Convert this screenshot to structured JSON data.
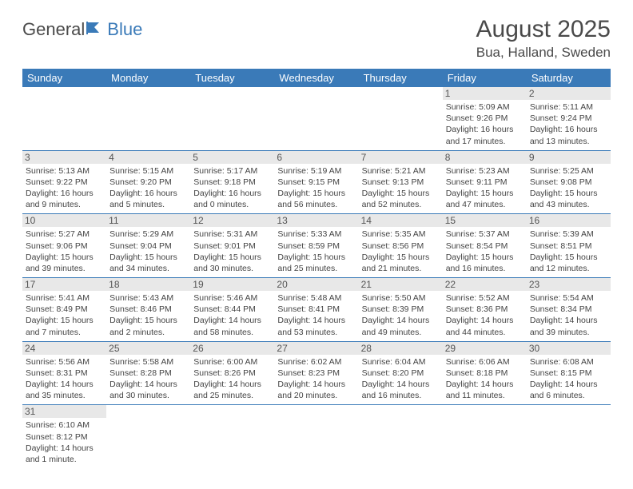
{
  "logo": {
    "text1": "General",
    "text2": "Blue"
  },
  "title": "August 2025",
  "location": "Bua, Halland, Sweden",
  "colors": {
    "header_bg": "#3a7ab8",
    "header_text": "#ffffff",
    "border": "#3a7ab8",
    "daynum_bg": "#e8e8e8",
    "text": "#4a4a4a"
  },
  "days": [
    "Sunday",
    "Monday",
    "Tuesday",
    "Wednesday",
    "Thursday",
    "Friday",
    "Saturday"
  ],
  "weeks": [
    [
      null,
      null,
      null,
      null,
      null,
      {
        "n": "1",
        "sunrise": "5:09 AM",
        "sunset": "9:26 PM",
        "daylight": "16 hours and 17 minutes."
      },
      {
        "n": "2",
        "sunrise": "5:11 AM",
        "sunset": "9:24 PM",
        "daylight": "16 hours and 13 minutes."
      }
    ],
    [
      {
        "n": "3",
        "sunrise": "5:13 AM",
        "sunset": "9:22 PM",
        "daylight": "16 hours and 9 minutes."
      },
      {
        "n": "4",
        "sunrise": "5:15 AM",
        "sunset": "9:20 PM",
        "daylight": "16 hours and 5 minutes."
      },
      {
        "n": "5",
        "sunrise": "5:17 AM",
        "sunset": "9:18 PM",
        "daylight": "16 hours and 0 minutes."
      },
      {
        "n": "6",
        "sunrise": "5:19 AM",
        "sunset": "9:15 PM",
        "daylight": "15 hours and 56 minutes."
      },
      {
        "n": "7",
        "sunrise": "5:21 AM",
        "sunset": "9:13 PM",
        "daylight": "15 hours and 52 minutes."
      },
      {
        "n": "8",
        "sunrise": "5:23 AM",
        "sunset": "9:11 PM",
        "daylight": "15 hours and 47 minutes."
      },
      {
        "n": "9",
        "sunrise": "5:25 AM",
        "sunset": "9:08 PM",
        "daylight": "15 hours and 43 minutes."
      }
    ],
    [
      {
        "n": "10",
        "sunrise": "5:27 AM",
        "sunset": "9:06 PM",
        "daylight": "15 hours and 39 minutes."
      },
      {
        "n": "11",
        "sunrise": "5:29 AM",
        "sunset": "9:04 PM",
        "daylight": "15 hours and 34 minutes."
      },
      {
        "n": "12",
        "sunrise": "5:31 AM",
        "sunset": "9:01 PM",
        "daylight": "15 hours and 30 minutes."
      },
      {
        "n": "13",
        "sunrise": "5:33 AM",
        "sunset": "8:59 PM",
        "daylight": "15 hours and 25 minutes."
      },
      {
        "n": "14",
        "sunrise": "5:35 AM",
        "sunset": "8:56 PM",
        "daylight": "15 hours and 21 minutes."
      },
      {
        "n": "15",
        "sunrise": "5:37 AM",
        "sunset": "8:54 PM",
        "daylight": "15 hours and 16 minutes."
      },
      {
        "n": "16",
        "sunrise": "5:39 AM",
        "sunset": "8:51 PM",
        "daylight": "15 hours and 12 minutes."
      }
    ],
    [
      {
        "n": "17",
        "sunrise": "5:41 AM",
        "sunset": "8:49 PM",
        "daylight": "15 hours and 7 minutes."
      },
      {
        "n": "18",
        "sunrise": "5:43 AM",
        "sunset": "8:46 PM",
        "daylight": "15 hours and 2 minutes."
      },
      {
        "n": "19",
        "sunrise": "5:46 AM",
        "sunset": "8:44 PM",
        "daylight": "14 hours and 58 minutes."
      },
      {
        "n": "20",
        "sunrise": "5:48 AM",
        "sunset": "8:41 PM",
        "daylight": "14 hours and 53 minutes."
      },
      {
        "n": "21",
        "sunrise": "5:50 AM",
        "sunset": "8:39 PM",
        "daylight": "14 hours and 49 minutes."
      },
      {
        "n": "22",
        "sunrise": "5:52 AM",
        "sunset": "8:36 PM",
        "daylight": "14 hours and 44 minutes."
      },
      {
        "n": "23",
        "sunrise": "5:54 AM",
        "sunset": "8:34 PM",
        "daylight": "14 hours and 39 minutes."
      }
    ],
    [
      {
        "n": "24",
        "sunrise": "5:56 AM",
        "sunset": "8:31 PM",
        "daylight": "14 hours and 35 minutes."
      },
      {
        "n": "25",
        "sunrise": "5:58 AM",
        "sunset": "8:28 PM",
        "daylight": "14 hours and 30 minutes."
      },
      {
        "n": "26",
        "sunrise": "6:00 AM",
        "sunset": "8:26 PM",
        "daylight": "14 hours and 25 minutes."
      },
      {
        "n": "27",
        "sunrise": "6:02 AM",
        "sunset": "8:23 PM",
        "daylight": "14 hours and 20 minutes."
      },
      {
        "n": "28",
        "sunrise": "6:04 AM",
        "sunset": "8:20 PM",
        "daylight": "14 hours and 16 minutes."
      },
      {
        "n": "29",
        "sunrise": "6:06 AM",
        "sunset": "8:18 PM",
        "daylight": "14 hours and 11 minutes."
      },
      {
        "n": "30",
        "sunrise": "6:08 AM",
        "sunset": "8:15 PM",
        "daylight": "14 hours and 6 minutes."
      }
    ],
    [
      {
        "n": "31",
        "sunrise": "6:10 AM",
        "sunset": "8:12 PM",
        "daylight": "14 hours and 1 minute."
      },
      null,
      null,
      null,
      null,
      null,
      null
    ]
  ],
  "labels": {
    "sunrise": "Sunrise:",
    "sunset": "Sunset:",
    "daylight": "Daylight:"
  }
}
